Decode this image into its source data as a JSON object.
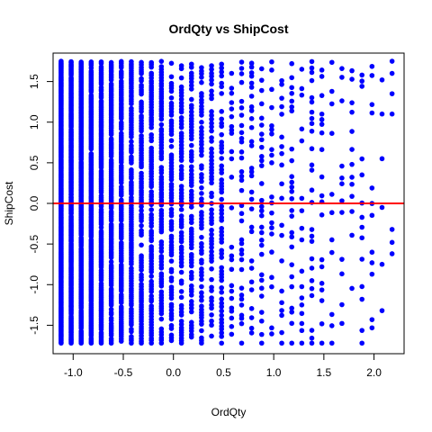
{
  "chart_data": {
    "type": "scatter",
    "title": "OrdQty vs ShipCost",
    "xlabel": "OrdQty",
    "ylabel": "ShipCost",
    "xlim": [
      -1.2,
      2.3
    ],
    "ylim": [
      -1.85,
      1.85
    ],
    "x_ticks": [
      -1.0,
      -0.5,
      0.0,
      0.5,
      1.0,
      1.5,
      2.0
    ],
    "x_tick_labels": [
      "-1.0",
      "-0.5",
      "0.0",
      "0.5",
      "1.0",
      "1.5",
      "2.0"
    ],
    "y_ticks": [
      -1.5,
      -1.0,
      -0.5,
      0.0,
      0.5,
      1.0,
      1.5
    ],
    "y_tick_labels": [
      "-1.5",
      "-1.0",
      "-0.5",
      "0.0",
      "0.5",
      "1.0",
      "1.5"
    ],
    "point_color": "#0000ff",
    "grid": false,
    "reference_line": {
      "y": 0.0,
      "color": "#ff0000"
    },
    "x_levels": [
      -1.12,
      -1.02,
      -0.92,
      -0.82,
      -0.72,
      -0.62,
      -0.52,
      -0.42,
      -0.32,
      -0.22,
      -0.12,
      -0.02,
      0.08,
      0.18,
      0.28,
      0.38,
      0.48,
      0.58,
      0.68,
      0.78,
      0.88,
      0.98,
      1.08,
      1.18,
      1.28,
      1.38,
      1.48,
      1.58,
      1.68,
      1.78,
      1.88,
      1.98,
      2.08,
      2.18
    ],
    "y_min": -1.72,
    "y_max": 1.75,
    "sparse_tail": [
      {
        "x": 2.08,
        "y": 1.52
      },
      {
        "x": 2.08,
        "y": 1.1
      },
      {
        "x": 2.08,
        "y": 0.55
      },
      {
        "x": 2.08,
        "y": -0.05
      },
      {
        "x": 2.08,
        "y": -0.75
      },
      {
        "x": 2.08,
        "y": -1.32
      },
      {
        "x": 2.18,
        "y": 1.75
      },
      {
        "x": 2.18,
        "y": 1.6
      },
      {
        "x": 2.18,
        "y": 1.35
      },
      {
        "x": 2.18,
        "y": 1.1
      },
      {
        "x": 2.18,
        "y": -0.32
      },
      {
        "x": 2.18,
        "y": -0.48
      },
      {
        "x": 2.18,
        "y": -0.62
      }
    ]
  }
}
